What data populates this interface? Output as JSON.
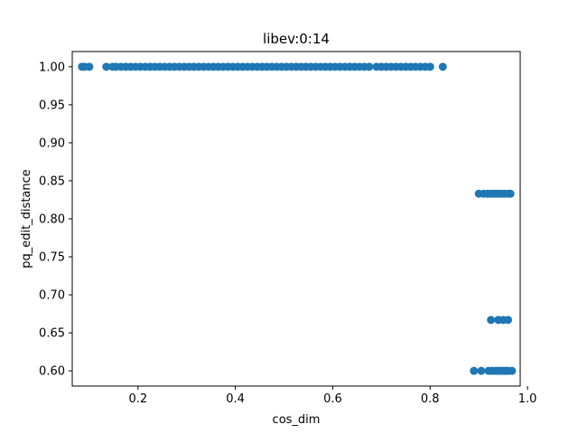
{
  "chart_data": {
    "type": "scatter",
    "title": "libev:0:14",
    "xlabel": "cos_dim",
    "ylabel": "pq_edit_distance",
    "xlim": [
      0.065,
      0.985
    ],
    "ylim": [
      0.58,
      1.02
    ],
    "xticks": [
      "0.2",
      "0.4",
      "0.6",
      "0.8",
      "1.0"
    ],
    "yticks": [
      "0.60",
      "0.65",
      "0.70",
      "0.75",
      "0.80",
      "0.85",
      "0.90",
      "0.95",
      "1.00"
    ],
    "grid": false,
    "series": [
      {
        "color": "#1f77b4",
        "points": [
          [
            0.085,
            1.0
          ],
          [
            0.09,
            1.0
          ],
          [
            0.1,
            1.0
          ],
          [
            0.135,
            1.0
          ],
          [
            0.148,
            1.0
          ],
          [
            0.155,
            1.0
          ],
          [
            0.165,
            1.0
          ],
          [
            0.175,
            1.0
          ],
          [
            0.185,
            1.0
          ],
          [
            0.195,
            1.0
          ],
          [
            0.205,
            1.0
          ],
          [
            0.215,
            1.0
          ],
          [
            0.225,
            1.0
          ],
          [
            0.235,
            1.0
          ],
          [
            0.245,
            1.0
          ],
          [
            0.255,
            1.0
          ],
          [
            0.265,
            1.0
          ],
          [
            0.275,
            1.0
          ],
          [
            0.285,
            1.0
          ],
          [
            0.295,
            1.0
          ],
          [
            0.305,
            1.0
          ],
          [
            0.315,
            1.0
          ],
          [
            0.325,
            1.0
          ],
          [
            0.335,
            1.0
          ],
          [
            0.345,
            1.0
          ],
          [
            0.355,
            1.0
          ],
          [
            0.365,
            1.0
          ],
          [
            0.375,
            1.0
          ],
          [
            0.385,
            1.0
          ],
          [
            0.395,
            1.0
          ],
          [
            0.405,
            1.0
          ],
          [
            0.415,
            1.0
          ],
          [
            0.425,
            1.0
          ],
          [
            0.435,
            1.0
          ],
          [
            0.445,
            1.0
          ],
          [
            0.455,
            1.0
          ],
          [
            0.465,
            1.0
          ],
          [
            0.475,
            1.0
          ],
          [
            0.485,
            1.0
          ],
          [
            0.495,
            1.0
          ],
          [
            0.505,
            1.0
          ],
          [
            0.515,
            1.0
          ],
          [
            0.525,
            1.0
          ],
          [
            0.535,
            1.0
          ],
          [
            0.545,
            1.0
          ],
          [
            0.555,
            1.0
          ],
          [
            0.565,
            1.0
          ],
          [
            0.575,
            1.0
          ],
          [
            0.585,
            1.0
          ],
          [
            0.595,
            1.0
          ],
          [
            0.605,
            1.0
          ],
          [
            0.615,
            1.0
          ],
          [
            0.625,
            1.0
          ],
          [
            0.635,
            1.0
          ],
          [
            0.645,
            1.0
          ],
          [
            0.655,
            1.0
          ],
          [
            0.665,
            1.0
          ],
          [
            0.675,
            1.0
          ],
          [
            0.69,
            1.0
          ],
          [
            0.7,
            1.0
          ],
          [
            0.71,
            1.0
          ],
          [
            0.72,
            1.0
          ],
          [
            0.73,
            1.0
          ],
          [
            0.74,
            1.0
          ],
          [
            0.75,
            1.0
          ],
          [
            0.76,
            1.0
          ],
          [
            0.77,
            1.0
          ],
          [
            0.78,
            1.0
          ],
          [
            0.79,
            1.0
          ],
          [
            0.8,
            1.0
          ],
          [
            0.826,
            1.0
          ],
          [
            0.9,
            0.833
          ],
          [
            0.91,
            0.833
          ],
          [
            0.918,
            0.833
          ],
          [
            0.925,
            0.833
          ],
          [
            0.93,
            0.833
          ],
          [
            0.935,
            0.833
          ],
          [
            0.94,
            0.833
          ],
          [
            0.945,
            0.833
          ],
          [
            0.952,
            0.833
          ],
          [
            0.96,
            0.833
          ],
          [
            0.965,
            0.833
          ],
          [
            0.925,
            0.667
          ],
          [
            0.94,
            0.667
          ],
          [
            0.95,
            0.667
          ],
          [
            0.96,
            0.667
          ],
          [
            0.89,
            0.6
          ],
          [
            0.905,
            0.6
          ],
          [
            0.92,
            0.6
          ],
          [
            0.928,
            0.6
          ],
          [
            0.935,
            0.6
          ],
          [
            0.94,
            0.6
          ],
          [
            0.945,
            0.6
          ],
          [
            0.95,
            0.6
          ],
          [
            0.955,
            0.6
          ],
          [
            0.96,
            0.6
          ],
          [
            0.968,
            0.6
          ]
        ]
      }
    ]
  }
}
